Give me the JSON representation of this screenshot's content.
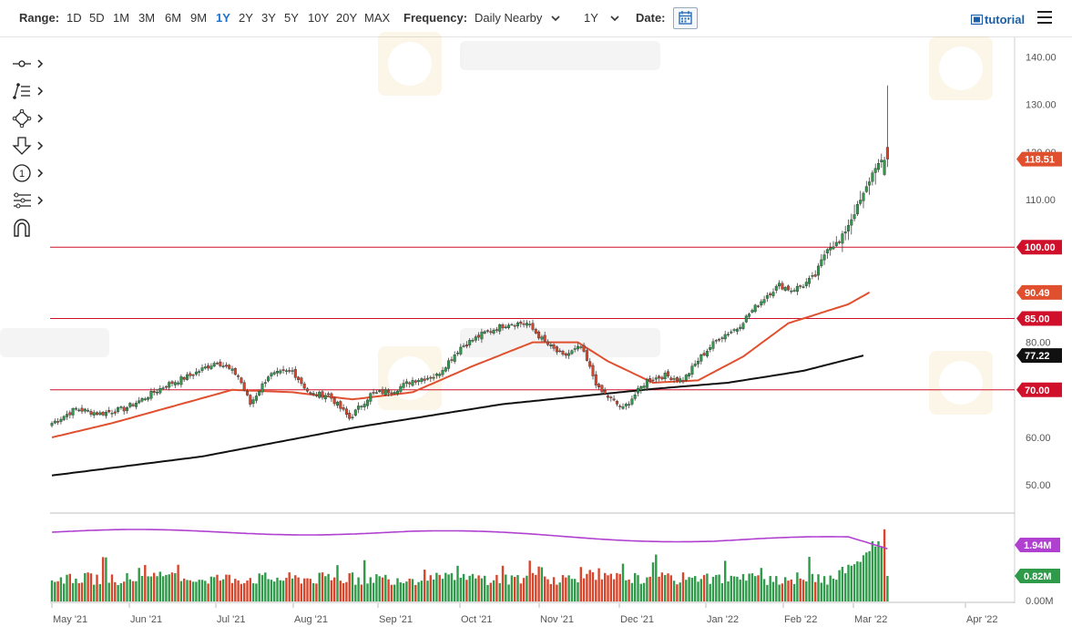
{
  "toolbar": {
    "range_label": "Range:",
    "ranges": [
      "1D",
      "5D",
      "1M",
      "3M",
      "6M",
      "9M",
      "1Y",
      "2Y",
      "3Y",
      "5Y",
      "10Y",
      "20Y",
      "MAX"
    ],
    "active_range": "1Y",
    "frequency_label": "Frequency:",
    "frequency_value": "Daily Nearby",
    "period_value": "1Y",
    "date_label": "Date:",
    "tutorial_label": "tutorial"
  },
  "tools": [
    "crosshair-icon",
    "trend-lines-icon",
    "shapes-icon",
    "arrow-icon",
    "number-marker-icon",
    "fibonacci-icon",
    "magnet-icon"
  ],
  "colors": {
    "up": "#2f9a4a",
    "down": "#d9452b",
    "ma50": "#e0502f",
    "ma200": "#111111",
    "hline": "#d0102a",
    "rsi": "#b040d0"
  },
  "chart_data": {
    "type": "candlestick",
    "price_axis": {
      "min": 45,
      "max": 142,
      "ticks": [
        "140.00",
        "130.00",
        "120.00",
        "110.00",
        "100.00",
        "90.00",
        "80.00",
        "70.00",
        "60.00",
        "50.00"
      ]
    },
    "x_labels": [
      "May '21",
      "Jun '21",
      "Jul '21",
      "Aug '21",
      "Sep '21",
      "Oct '21",
      "Nov '21",
      "Dec '21",
      "Jan '22",
      "Feb '22",
      "Mar '22",
      "Apr '22"
    ],
    "horizontal_lines": [
      100,
      85,
      70
    ],
    "price_labels": [
      {
        "text": "118.51",
        "value": 118.51,
        "color": "#e0502f"
      },
      {
        "text": "100.00",
        "value": 100.0,
        "color": "#d0102a"
      },
      {
        "text": "90.49",
        "value": 90.49,
        "color": "#e0502f"
      },
      {
        "text": "85.00",
        "value": 85.0,
        "color": "#d0102a"
      },
      {
        "text": "77.22",
        "value": 77.22,
        "color": "#111111"
      },
      {
        "text": "70.00",
        "value": 70.0,
        "color": "#d0102a"
      }
    ],
    "close_anchors": [
      [
        0,
        63
      ],
      [
        8,
        66
      ],
      [
        16,
        65
      ],
      [
        24,
        66
      ],
      [
        30,
        68
      ],
      [
        38,
        71
      ],
      [
        46,
        73
      ],
      [
        55,
        76
      ],
      [
        62,
        73
      ],
      [
        66,
        67
      ],
      [
        72,
        73
      ],
      [
        80,
        74
      ],
      [
        86,
        69
      ],
      [
        92,
        69
      ],
      [
        99,
        64
      ],
      [
        106,
        69
      ],
      [
        114,
        70
      ],
      [
        120,
        72
      ],
      [
        128,
        73
      ],
      [
        136,
        79
      ],
      [
        144,
        82
      ],
      [
        152,
        84
      ],
      [
        158,
        84
      ],
      [
        164,
        80
      ],
      [
        170,
        77
      ],
      [
        176,
        79
      ],
      [
        182,
        70
      ],
      [
        186,
        68
      ],
      [
        190,
        66
      ],
      [
        198,
        72
      ],
      [
        204,
        73
      ],
      [
        210,
        72
      ],
      [
        216,
        77
      ],
      [
        222,
        81
      ],
      [
        228,
        83
      ],
      [
        232,
        86
      ],
      [
        238,
        90
      ],
      [
        242,
        92
      ],
      [
        246,
        91
      ],
      [
        250,
        92
      ],
      [
        254,
        94
      ],
      [
        258,
        100
      ],
      [
        262,
        101
      ],
      [
        266,
        106
      ],
      [
        270,
        111
      ],
      [
        274,
        117
      ],
      [
        278,
        118.51
      ]
    ],
    "ma50_anchors": [
      [
        0,
        60
      ],
      [
        20,
        63
      ],
      [
        40,
        66.5
      ],
      [
        60,
        70
      ],
      [
        80,
        69.5
      ],
      [
        100,
        68
      ],
      [
        120,
        69.5
      ],
      [
        140,
        75
      ],
      [
        160,
        80
      ],
      [
        175,
        80
      ],
      [
        185,
        76
      ],
      [
        200,
        71.5
      ],
      [
        215,
        72
      ],
      [
        230,
        77
      ],
      [
        245,
        84
      ],
      [
        255,
        86
      ],
      [
        265,
        88
      ],
      [
        272,
        90.49
      ]
    ],
    "ma200_anchors": [
      [
        0,
        52
      ],
      [
        50,
        56
      ],
      [
        100,
        62
      ],
      [
        150,
        67
      ],
      [
        200,
        70.2
      ],
      [
        225,
        71.5
      ],
      [
        250,
        74
      ],
      [
        270,
        77.22
      ]
    ],
    "volume_axis": {
      "ticks": [
        "0.00M"
      ]
    },
    "volume_labels": [
      {
        "text": "1.94M",
        "color": "#b040d0"
      },
      {
        "text": "0.82M",
        "color": "#2f9a4a"
      }
    ]
  }
}
